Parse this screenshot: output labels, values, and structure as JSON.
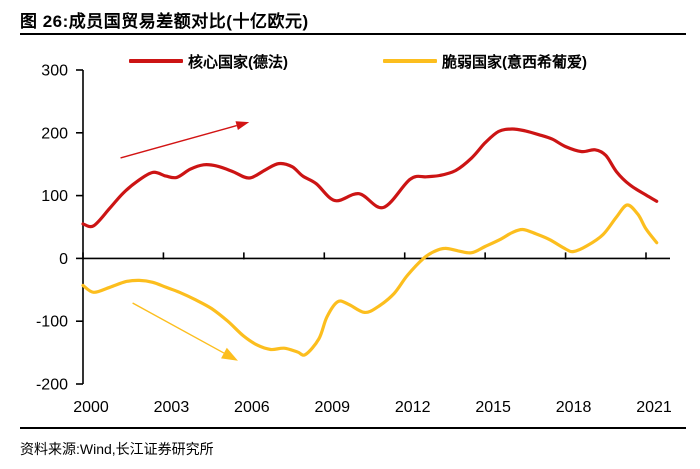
{
  "header": {
    "title": "图 26:成员国贸易差额对比(十亿欧元)"
  },
  "footer": {
    "source": "资料来源:Wind,长江证券研究所"
  },
  "colors": {
    "core_red": "#cc1414",
    "fragile_yellow": "#fcbe1e",
    "axis": "#000000"
  },
  "chart_data": {
    "type": "line",
    "title": "成员国贸易差额对比",
    "unit": "十亿欧元",
    "xlabel": "",
    "ylabel": "",
    "xlim": [
      2000,
      2021.9
    ],
    "ylim": [
      -200,
      300
    ],
    "x_ticks": [
      2000,
      2003,
      2006,
      2009,
      2012,
      2015,
      2018,
      2021
    ],
    "y_ticks": [
      300,
      200,
      100,
      0,
      -100,
      -200
    ],
    "grid": false,
    "legend_position": "top",
    "series": [
      {
        "key": "core",
        "name": "核心国家(德法)",
        "color": "#cc1414",
        "points": [
          [
            2000.0,
            55
          ],
          [
            2000.4,
            52
          ],
          [
            2001.0,
            80
          ],
          [
            2001.5,
            104
          ],
          [
            2002.0,
            122
          ],
          [
            2002.6,
            137
          ],
          [
            2003.1,
            131
          ],
          [
            2003.5,
            129
          ],
          [
            2004.0,
            142
          ],
          [
            2004.5,
            149
          ],
          [
            2005.0,
            147
          ],
          [
            2005.6,
            138
          ],
          [
            2006.2,
            128
          ],
          [
            2006.8,
            141
          ],
          [
            2007.3,
            151
          ],
          [
            2007.8,
            146
          ],
          [
            2008.2,
            131
          ],
          [
            2008.7,
            119
          ],
          [
            2009.4,
            92
          ],
          [
            2010.3,
            103
          ],
          [
            2011.2,
            81
          ],
          [
            2012.2,
            126
          ],
          [
            2012.8,
            130
          ],
          [
            2013.3,
            132
          ],
          [
            2013.9,
            140
          ],
          [
            2014.5,
            160
          ],
          [
            2015.0,
            184
          ],
          [
            2015.5,
            202
          ],
          [
            2016.0,
            206
          ],
          [
            2016.5,
            203
          ],
          [
            2017.0,
            197
          ],
          [
            2017.5,
            190
          ],
          [
            2018.0,
            178
          ],
          [
            2018.6,
            170
          ],
          [
            2019.1,
            173
          ],
          [
            2019.5,
            164
          ],
          [
            2019.9,
            138
          ],
          [
            2020.4,
            117
          ],
          [
            2021.0,
            101
          ],
          [
            2021.4,
            91
          ]
        ]
      },
      {
        "key": "fragile",
        "name": "脆弱国家(意西希葡爱)",
        "color": "#fcbe1e",
        "points": [
          [
            2000.0,
            -43
          ],
          [
            2000.4,
            -54
          ],
          [
            2001.0,
            -46
          ],
          [
            2001.6,
            -37
          ],
          [
            2002.1,
            -35
          ],
          [
            2002.6,
            -38
          ],
          [
            2003.1,
            -46
          ],
          [
            2003.6,
            -54
          ],
          [
            2004.2,
            -66
          ],
          [
            2004.8,
            -80
          ],
          [
            2005.4,
            -100
          ],
          [
            2006.0,
            -124
          ],
          [
            2006.5,
            -138
          ],
          [
            2007.0,
            -145
          ],
          [
            2007.5,
            -143
          ],
          [
            2008.0,
            -149
          ],
          [
            2008.3,
            -153
          ],
          [
            2008.8,
            -128
          ],
          [
            2009.1,
            -93
          ],
          [
            2009.5,
            -69
          ],
          [
            2009.9,
            -73
          ],
          [
            2010.5,
            -86
          ],
          [
            2011.0,
            -77
          ],
          [
            2011.6,
            -56
          ],
          [
            2012.1,
            -27
          ],
          [
            2012.7,
            0
          ],
          [
            2013.1,
            11
          ],
          [
            2013.5,
            16
          ],
          [
            2014.0,
            12
          ],
          [
            2014.5,
            9
          ],
          [
            2015.0,
            19
          ],
          [
            2015.6,
            31
          ],
          [
            2016.0,
            41
          ],
          [
            2016.4,
            46
          ],
          [
            2016.9,
            39
          ],
          [
            2017.4,
            30
          ],
          [
            2018.0,
            15
          ],
          [
            2018.3,
            11
          ],
          [
            2018.8,
            20
          ],
          [
            2019.4,
            38
          ],
          [
            2019.9,
            66
          ],
          [
            2020.3,
            85
          ],
          [
            2020.7,
            70
          ],
          [
            2021.0,
            47
          ],
          [
            2021.4,
            25
          ]
        ]
      }
    ],
    "annotations": [
      {
        "name": "core-uptrend-arrow",
        "color": "#d21414",
        "from": [
          2001.4,
          160
        ],
        "to": [
          2006.2,
          217
        ],
        "head_len": 13,
        "head_w": 9,
        "stroke_w": 1.4
      },
      {
        "name": "fragile-downtrend-arrow",
        "color": "#fcbe1e",
        "from": [
          2001.85,
          -71
        ],
        "to": [
          2005.78,
          -163
        ],
        "head_len": 16,
        "head_w": 12,
        "stroke_w": 1.4
      }
    ]
  }
}
